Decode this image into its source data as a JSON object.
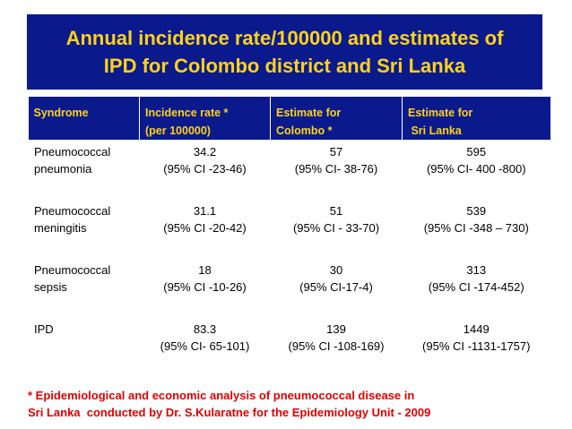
{
  "title": {
    "line1": "Annual incidence rate/100000 and estimates of",
    "line2": "IPD for Colombo district and Sri Lanka"
  },
  "table": {
    "headers": [
      {
        "line1": "Syndrome",
        "line2": ""
      },
      {
        "line1": "Incidence  rate *",
        "line2": "(per 100000)"
      },
      {
        "line1": "Estimate for",
        "line2": "Colombo *"
      },
      {
        "line1": "Estimate for",
        "line2": " Sri Lanka"
      }
    ],
    "rows": [
      {
        "syndrome": "Pneumococcal pneumonia",
        "incidence": {
          "value": "34.2",
          "ci": "(95% CI -23-46)"
        },
        "colombo": {
          "value": "57",
          "ci": "(95% CI- 38-76)"
        },
        "srilanka": {
          "value": "595",
          "ci": "(95% CI- 400 -800)"
        }
      },
      {
        "syndrome": "Pneumococcal meningitis",
        "incidence": {
          "value": "31.1",
          "ci": "(95% CI -20-42)"
        },
        "colombo": {
          "value": "51",
          "ci": "(95% CI - 33-70)"
        },
        "srilanka": {
          "value": "539",
          "ci": "(95% CI -348 – 730)"
        }
      },
      {
        "syndrome": "Pneumococcal sepsis",
        "incidence": {
          "value": "18",
          "ci": "(95% CI -10-26)"
        },
        "colombo": {
          "value": "30",
          "ci": "(95% CI-17-4)"
        },
        "srilanka": {
          "value": "313",
          "ci": "(95% CI -174-452)"
        }
      },
      {
        "syndrome": "IPD",
        "incidence": {
          "value": "83.3",
          "ci": "(95% CI- 65-101)"
        },
        "colombo": {
          "value": "139",
          "ci": "(95% CI -108-169)"
        },
        "srilanka": {
          "value": "1449",
          "ci": "(95% CI -1131-1757)"
        }
      }
    ]
  },
  "footnote": {
    "line1": "* Epidemiological and economic analysis of pneumococcal disease in",
    "line2": "Sri Lanka  conducted by Dr. S.Kularatne for the Epidemiology Unit - 2009"
  },
  "colors": {
    "banner_bg": "#0a1a8c",
    "banner_text": "#ffd21a",
    "footnote_text": "#e00000"
  }
}
